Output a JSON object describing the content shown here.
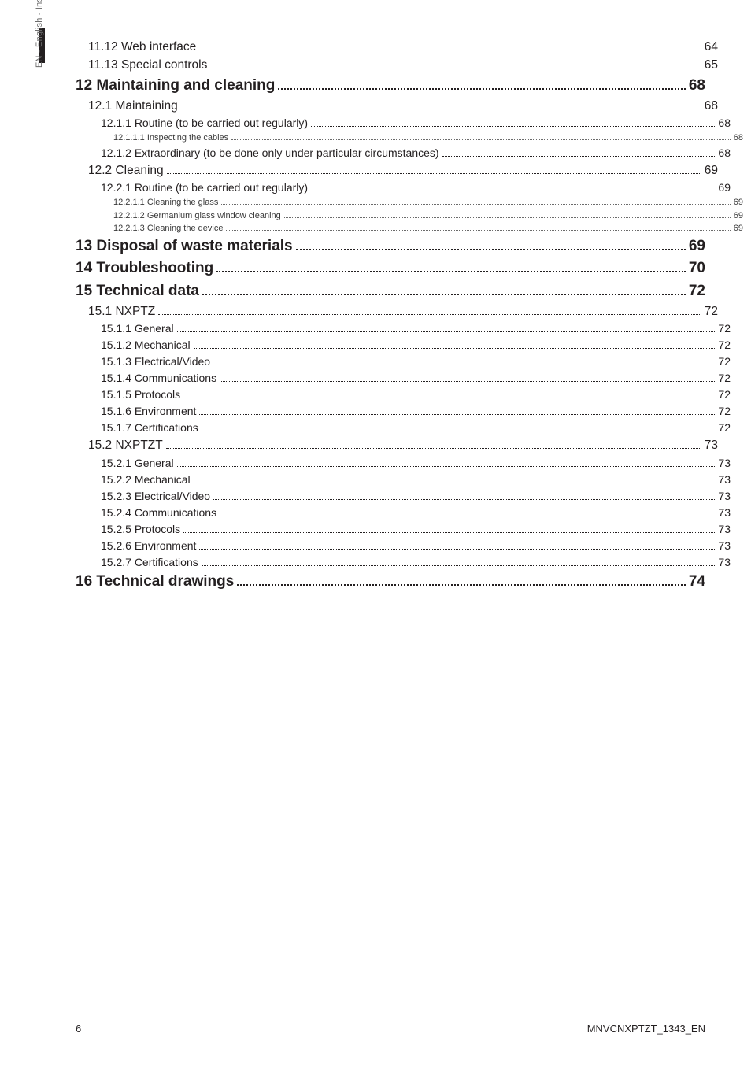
{
  "sidebar_label": "EN - English - Instructions manual",
  "footer": {
    "page_number": "6",
    "doc_code": "MNVCNXPTZT_1343_EN"
  },
  "toc": [
    {
      "level": "h2",
      "title": "11.12 Web interface",
      "page": "64"
    },
    {
      "level": "h2",
      "title": "11.13 Special controls",
      "page": "65"
    },
    {
      "level": "h1",
      "title": "12 Maintaining and cleaning",
      "page": "68"
    },
    {
      "level": "h2",
      "title": "12.1 Maintaining",
      "page": "68"
    },
    {
      "level": "h3",
      "title": "12.1.1 Routine (to be carried out regularly)",
      "page": "68"
    },
    {
      "level": "h4",
      "title": "12.1.1.1 Inspecting the cables",
      "page": "68"
    },
    {
      "level": "h3",
      "title": "12.1.2 Extraordinary (to be done only under particular circumstances)",
      "page": "68"
    },
    {
      "level": "h2",
      "title": "12.2 Cleaning",
      "page": "69"
    },
    {
      "level": "h3",
      "title": "12.2.1 Routine (to be carried out regularly)",
      "page": "69"
    },
    {
      "level": "h4",
      "title": "12.2.1.1 Cleaning the glass",
      "page": "69"
    },
    {
      "level": "h4",
      "title": "12.2.1.2 Germanium glass window cleaning",
      "page": "69"
    },
    {
      "level": "h4",
      "title": "12.2.1.3 Cleaning the device",
      "page": "69"
    },
    {
      "level": "h1",
      "title": "13 Disposal of waste materials",
      "page": "69"
    },
    {
      "level": "h1",
      "title": "14 Troubleshooting",
      "page": "70"
    },
    {
      "level": "h1",
      "title": "15 Technical data",
      "page": "72"
    },
    {
      "level": "h2",
      "title": "15.1 NXPTZ",
      "page": "72"
    },
    {
      "level": "h3",
      "title": "15.1.1 General",
      "page": "72"
    },
    {
      "level": "h3",
      "title": "15.1.2 Mechanical",
      "page": "72"
    },
    {
      "level": "h3",
      "title": "15.1.3 Electrical/Video",
      "page": "72"
    },
    {
      "level": "h3",
      "title": "15.1.4 Communications",
      "page": "72"
    },
    {
      "level": "h3",
      "title": "15.1.5 Protocols",
      "page": "72"
    },
    {
      "level": "h3",
      "title": "15.1.6 Environment",
      "page": "72"
    },
    {
      "level": "h3",
      "title": "15.1.7 Certifications",
      "page": "72"
    },
    {
      "level": "h2",
      "title": "15.2 NXPTZT",
      "page": "73"
    },
    {
      "level": "h3",
      "title": "15.2.1 General",
      "page": "73"
    },
    {
      "level": "h3",
      "title": "15.2.2 Mechanical",
      "page": "73"
    },
    {
      "level": "h3",
      "title": "15.2.3 Electrical/Video",
      "page": "73"
    },
    {
      "level": "h3",
      "title": "15.2.4 Communications",
      "page": "73"
    },
    {
      "level": "h3",
      "title": "15.2.5 Protocols",
      "page": "73"
    },
    {
      "level": "h3",
      "title": "15.2.6 Environment",
      "page": "73"
    },
    {
      "level": "h3",
      "title": "15.2.7 Certifications",
      "page": "73"
    },
    {
      "level": "h1",
      "title": "16 Technical drawings",
      "page": "74"
    }
  ]
}
